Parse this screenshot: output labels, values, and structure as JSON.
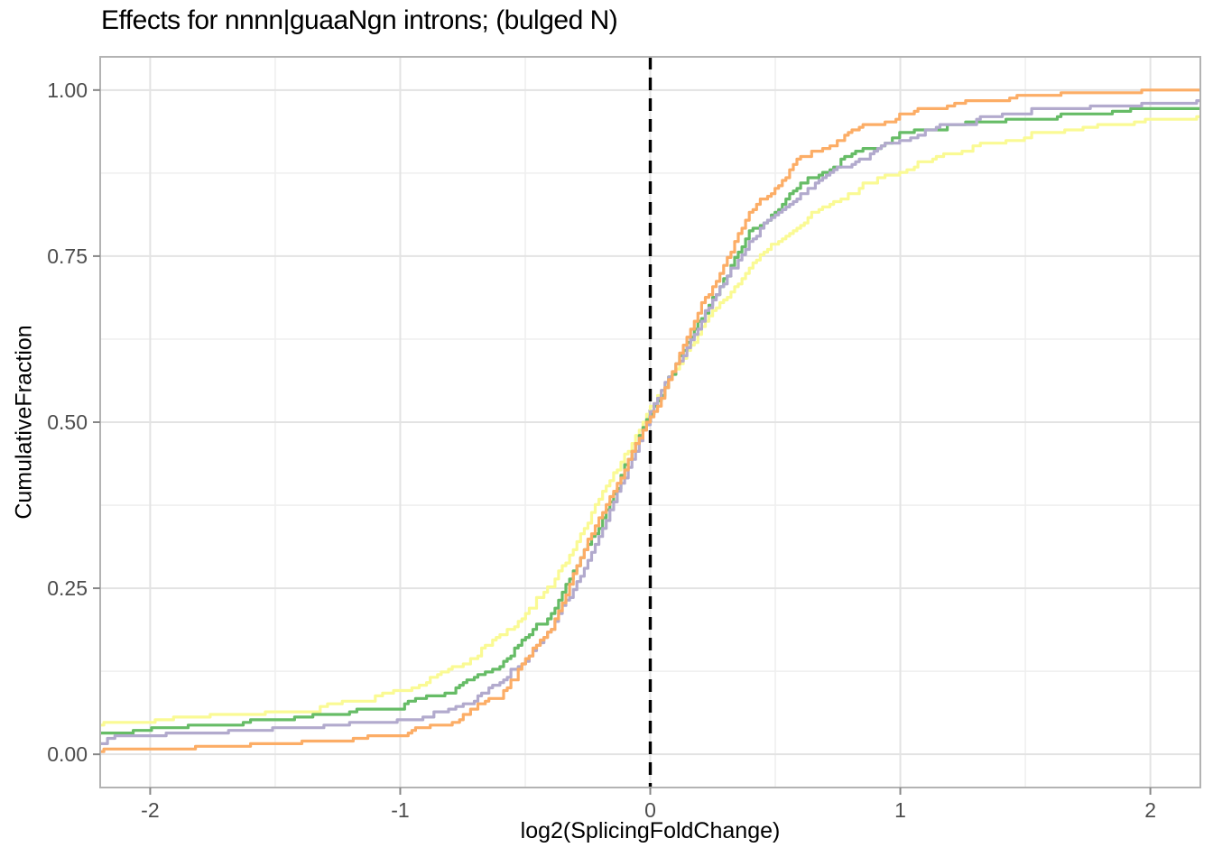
{
  "chart_data": {
    "type": "line",
    "subtype": "ecdf-step",
    "title": "Effects for nnnn|guaaNgn introns; (bulged N)",
    "xlabel": "log2(SplicingFoldChange)",
    "ylabel": "CumulativeFraction",
    "xlim": [
      -2.2,
      2.2
    ],
    "ylim": [
      -0.05,
      1.05
    ],
    "x_ticks": {
      "values": [
        -2,
        -1,
        0,
        1,
        2
      ],
      "labels": [
        "-2",
        "-1",
        "0",
        "1",
        "2"
      ]
    },
    "y_ticks": {
      "values": [
        0,
        0.25,
        0.5,
        0.75,
        1
      ],
      "labels": [
        "0.00",
        "0.25",
        "0.50",
        "0.75",
        "1.00"
      ]
    },
    "x_minor_ticks": [
      -1.5,
      -0.5,
      0.5,
      1.5
    ],
    "y_minor_ticks": [
      0.125,
      0.375,
      0.625,
      0.875
    ],
    "grid": true,
    "legend": false,
    "reference_line": {
      "x": 0,
      "style": "dashed",
      "color": "#000000"
    },
    "x": [
      -2.2,
      -2.0,
      -1.8,
      -1.6,
      -1.4,
      -1.2,
      -1.0,
      -0.8,
      -0.6,
      -0.4,
      -0.2,
      0.0,
      0.2,
      0.4,
      0.6,
      0.8,
      1.0,
      1.2,
      1.4,
      1.6,
      1.8,
      2.0,
      2.2
    ],
    "series": [
      {
        "name": "yellow",
        "color": "#FAFA94",
        "values": [
          0.045,
          0.048,
          0.053,
          0.059,
          0.066,
          0.078,
          0.094,
          0.125,
          0.175,
          0.25,
          0.385,
          0.52,
          0.64,
          0.735,
          0.8,
          0.845,
          0.878,
          0.905,
          0.922,
          0.936,
          0.945,
          0.951,
          0.955
        ]
      },
      {
        "name": "green",
        "color": "#66BC66",
        "values": [
          0.032,
          0.035,
          0.04,
          0.046,
          0.053,
          0.062,
          0.072,
          0.095,
          0.135,
          0.21,
          0.35,
          0.515,
          0.655,
          0.785,
          0.855,
          0.9,
          0.93,
          0.944,
          0.952,
          0.958,
          0.963,
          0.968,
          0.972
        ]
      },
      {
        "name": "purple",
        "color": "#B2AACD",
        "values": [
          0.022,
          0.025,
          0.029,
          0.034,
          0.039,
          0.043,
          0.046,
          0.065,
          0.105,
          0.185,
          0.33,
          0.515,
          0.65,
          0.775,
          0.845,
          0.89,
          0.925,
          0.947,
          0.96,
          0.969,
          0.973,
          0.977,
          0.98
        ]
      },
      {
        "name": "orange",
        "color": "#FCAD66",
        "values": [
          0.004,
          0.006,
          0.008,
          0.011,
          0.015,
          0.02,
          0.028,
          0.047,
          0.09,
          0.19,
          0.36,
          0.505,
          0.67,
          0.815,
          0.895,
          0.935,
          0.96,
          0.976,
          0.986,
          0.991,
          0.993,
          0.994,
          0.995
        ]
      }
    ],
    "style_colors": {
      "grid_major": "#E3E3E3",
      "grid_minor": "#EFEFEF",
      "panel_border": "#B3B3B3",
      "tick_mark": "#878787",
      "tick_label": "#4D4D4D"
    }
  }
}
